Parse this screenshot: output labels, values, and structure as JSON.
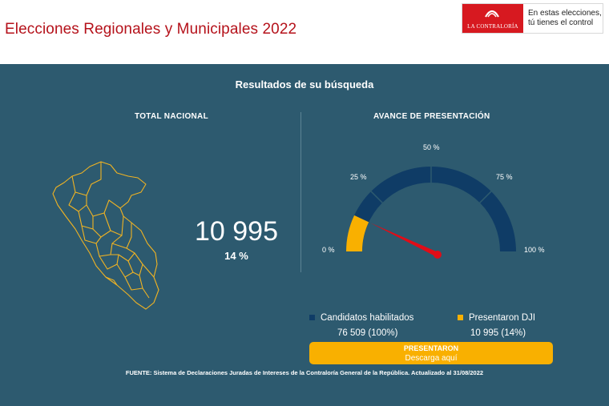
{
  "header": {
    "title": "Elecciones Regionales y Municipales 2022",
    "logo": {
      "name": "LA CONTRALORÍA",
      "slogan_line1": "En estas elecciones,",
      "slogan_line2": "tú tienes el control"
    }
  },
  "main": {
    "title": "Resultados de su búsqueda",
    "total": {
      "label": "TOTAL NACIONAL",
      "value": "10 995",
      "percent": "14 %"
    },
    "progress": {
      "label": "AVANCE DE PRESENTACIÓN",
      "fraction": 0.14,
      "ticks": [
        "0 %",
        "25 %",
        "50 %",
        "75 %",
        "100 %"
      ]
    },
    "legend": {
      "habilitados": {
        "label": "Candidatos habilitados",
        "value": "76 509 (100%)"
      },
      "presentaron": {
        "label": "Presentaron DJI",
        "value": "10 995 (14%)"
      }
    },
    "download": {
      "line1": "PRESENTARON",
      "line2": "Descarga aquí"
    },
    "footer": "FUENTE: Sistema de Declaraciones Juradas de Intereses de la Contraloría General de la República. Actualizado al   31/08/2022"
  },
  "colors": {
    "brand_red": "#b5121b",
    "panel": "#2d5a6f",
    "gauge_track": "#0f3c66",
    "gauge_fill": "#f9b000",
    "needle": "#e10c17"
  },
  "icons": [
    "peru-map-icon",
    "gauge-needle-icon",
    "contraloria-logo-icon"
  ]
}
